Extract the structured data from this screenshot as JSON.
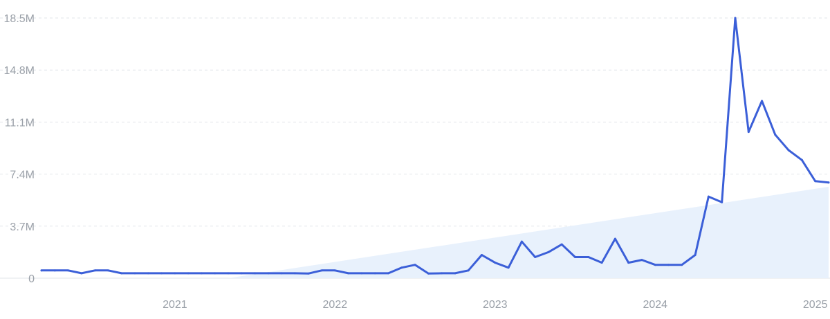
{
  "chart_data": {
    "type": "line",
    "title": "",
    "xlabel": "",
    "ylabel": "",
    "x_tick_labels": [
      "2021",
      "2022",
      "2023",
      "2024",
      "2025"
    ],
    "y_tick_labels": [
      "0",
      "3.7M",
      "7.4M",
      "11.1M",
      "14.8M",
      "18.5M"
    ],
    "y_tick_values": [
      0,
      3700000,
      7400000,
      11100000,
      14800000,
      18500000
    ],
    "ylim": [
      0,
      18500000
    ],
    "xlim": [
      "2020-09",
      "2025-08"
    ],
    "grid": true,
    "colors": {
      "line": "#3b5fd8",
      "trend_fill": "#e8f1fc"
    },
    "trend": {
      "x": [
        "2021-11",
        "2025-08"
      ],
      "values": [
        0,
        6500000
      ]
    },
    "series": [
      {
        "x": [
          "2020-09",
          "2020-10",
          "2020-11",
          "2020-12",
          "2021-01",
          "2021-02",
          "2021-03",
          "2021-04",
          "2021-05",
          "2021-06",
          "2021-07",
          "2021-08",
          "2021-09",
          "2021-10",
          "2021-11",
          "2021-12",
          "2022-01",
          "2022-02",
          "2022-03",
          "2022-04",
          "2022-05",
          "2022-06",
          "2022-07",
          "2022-08",
          "2022-09",
          "2022-10",
          "2022-11",
          "2022-12",
          "2023-01",
          "2023-02",
          "2023-03",
          "2023-04",
          "2023-05",
          "2023-06",
          "2023-07",
          "2023-08",
          "2023-09",
          "2023-10",
          "2023-11",
          "2023-12",
          "2024-01",
          "2024-02",
          "2024-03",
          "2024-04",
          "2024-05",
          "2024-06",
          "2024-07",
          "2024-08",
          "2024-09",
          "2024-10",
          "2024-11",
          "2024-12",
          "2025-01",
          "2025-02",
          "2025-03",
          "2025-04",
          "2025-05",
          "2025-06",
          "2025-07",
          "2025-08"
        ],
        "values": [
          550000,
          550000,
          550000,
          350000,
          550000,
          550000,
          350000,
          350000,
          350000,
          350000,
          350000,
          350000,
          350000,
          350000,
          350000,
          350000,
          350000,
          350000,
          350000,
          350000,
          330000,
          550000,
          550000,
          350000,
          350000,
          350000,
          350000,
          750000,
          950000,
          330000,
          350000,
          350000,
          550000,
          1650000,
          1100000,
          750000,
          2600000,
          1500000,
          1850000,
          2400000,
          1500000,
          1500000,
          1100000,
          2800000,
          1100000,
          1300000,
          950000,
          950000,
          950000,
          1650000,
          5800000,
          5400000,
          18500000,
          10400000,
          12600000,
          10200000,
          9100000,
          8400000,
          6900000,
          6800000
        ]
      }
    ]
  }
}
